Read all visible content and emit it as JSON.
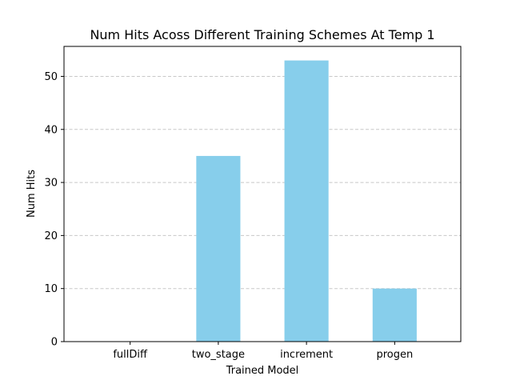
{
  "chart_data": {
    "type": "bar",
    "title": "Num Hits Acoss Different Training Schemes At Temp 1",
    "xlabel": "Trained Model",
    "ylabel": "Num Hits",
    "categories": [
      "fullDiff",
      "two_stage",
      "increment",
      "progen"
    ],
    "values": [
      0,
      35,
      53,
      10
    ],
    "ylim": [
      0,
      55.65
    ],
    "yticks": [
      0,
      10,
      20,
      30,
      40,
      50
    ],
    "grid": "y-dashed",
    "bar_color": "#87ceeb",
    "grid_color": "#c8c8c8"
  }
}
